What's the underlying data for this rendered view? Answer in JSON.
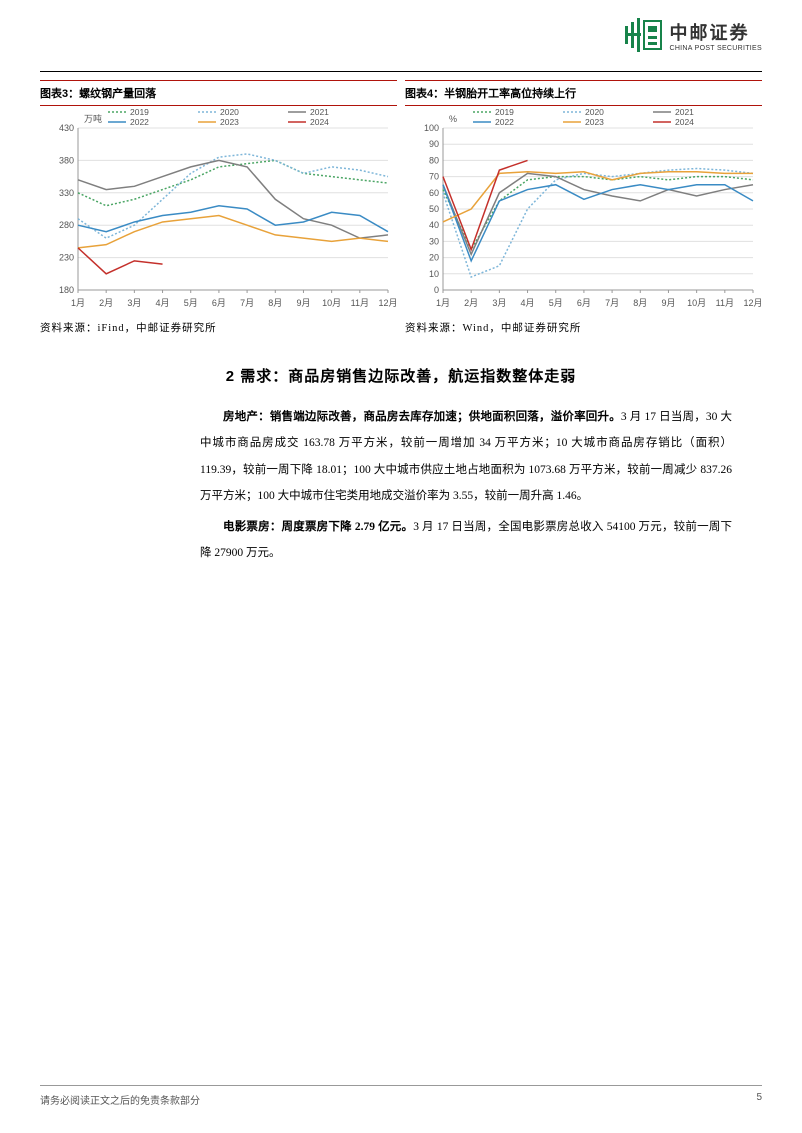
{
  "header": {
    "logo_name": "中邮证券",
    "logo_sub": "CHINA POST SECURITIES"
  },
  "chart3": {
    "title": "图表3：螺纹钢产量回落",
    "source": "资料来源：iFind，中邮证券研究所",
    "type": "line",
    "ylabel": "万吨",
    "ylim": [
      180,
      430
    ],
    "ytick_step": 50,
    "x_categories": [
      "1月",
      "2月",
      "3月",
      "4月",
      "5月",
      "6月",
      "7月",
      "8月",
      "9月",
      "10月",
      "11月",
      "12月"
    ],
    "background_color": "#ffffff",
    "grid_color": "#e0e0e0",
    "tick_fontsize": 9,
    "line_width": 1.5,
    "series": [
      {
        "name": "2019",
        "color": "#4aa564",
        "dash": "2,2",
        "values": [
          330,
          310,
          320,
          335,
          350,
          370,
          375,
          380,
          360,
          355,
          350,
          345
        ]
      },
      {
        "name": "2020",
        "color": "#7eb6d9",
        "dash": "2,2",
        "values": [
          290,
          260,
          280,
          320,
          360,
          385,
          390,
          380,
          360,
          370,
          365,
          355
        ]
      },
      {
        "name": "2021",
        "color": "#7f7f7f",
        "dash": "",
        "values": [
          350,
          335,
          340,
          355,
          370,
          380,
          370,
          320,
          290,
          280,
          260,
          265
        ]
      },
      {
        "name": "2022",
        "color": "#3a8bc4",
        "dash": "",
        "values": [
          280,
          270,
          285,
          295,
          300,
          310,
          305,
          280,
          285,
          300,
          295,
          270
        ]
      },
      {
        "name": "2023",
        "color": "#e8a23a",
        "dash": "",
        "values": [
          245,
          250,
          270,
          285,
          290,
          295,
          280,
          265,
          260,
          255,
          260,
          255
        ]
      },
      {
        "name": "2024",
        "color": "#c4302b",
        "dash": "",
        "values": [
          245,
          205,
          225,
          220,
          null,
          null,
          null,
          null,
          null,
          null,
          null,
          null
        ]
      }
    ]
  },
  "chart4": {
    "title": "图表4：半钢胎开工率高位持续上行",
    "source": "资料来源：Wind，中邮证券研究所",
    "type": "line",
    "ylabel": "%",
    "ylim": [
      0,
      100
    ],
    "ytick_step": 10,
    "x_categories": [
      "1月",
      "2月",
      "3月",
      "4月",
      "5月",
      "6月",
      "7月",
      "8月",
      "9月",
      "10月",
      "11月",
      "12月"
    ],
    "background_color": "#ffffff",
    "grid_color": "#e0e0e0",
    "tick_fontsize": 9,
    "line_width": 1.5,
    "series": [
      {
        "name": "2019",
        "color": "#4aa564",
        "dash": "2,2",
        "values": [
          62,
          25,
          55,
          68,
          70,
          70,
          68,
          70,
          68,
          70,
          70,
          68
        ]
      },
      {
        "name": "2020",
        "color": "#7eb6d9",
        "dash": "2,2",
        "values": [
          60,
          8,
          15,
          50,
          68,
          72,
          70,
          72,
          74,
          75,
          74,
          72
        ]
      },
      {
        "name": "2021",
        "color": "#7f7f7f",
        "dash": "",
        "values": [
          65,
          22,
          60,
          72,
          70,
          62,
          58,
          55,
          62,
          58,
          62,
          65
        ]
      },
      {
        "name": "2022",
        "color": "#3a8bc4",
        "dash": "",
        "values": [
          65,
          18,
          55,
          62,
          65,
          56,
          62,
          65,
          62,
          65,
          65,
          55
        ]
      },
      {
        "name": "2023",
        "color": "#e8a23a",
        "dash": "",
        "values": [
          42,
          50,
          72,
          73,
          72,
          73,
          68,
          72,
          73,
          73,
          72,
          72
        ]
      },
      {
        "name": "2024",
        "color": "#c4302b",
        "dash": "",
        "values": [
          70,
          25,
          74,
          80,
          null,
          null,
          null,
          null,
          null,
          null,
          null,
          null
        ]
      }
    ]
  },
  "section2": {
    "title": "2 需求：商品房销售边际改善，航运指数整体走弱",
    "para1_lead": "房地产：销售端边际改善，商品房去库存加速；供地面积回落，溢价率回升。",
    "para1_body": "3 月 17 日当周，30 大中城市商品房成交 163.78 万平方米，较前一周增加 34 万平方米；10 大城市商品房存销比（面积）119.39，较前一周下降 18.01；100 大中城市供应土地占地面积为 1073.68 万平方米，较前一周减少 837.26 万平方米；100 大中城市住宅类用地成交溢价率为 3.55，较前一周升高 1.46。",
    "para2_lead": "电影票房：周度票房下降 2.79 亿元。",
    "para2_body": "3 月 17 日当周，全国电影票房总收入 54100 万元，较前一周下降 27900 万元。"
  },
  "footer": {
    "disclaimer": "请务必阅读正文之后的免责条款部分",
    "page": "5"
  }
}
